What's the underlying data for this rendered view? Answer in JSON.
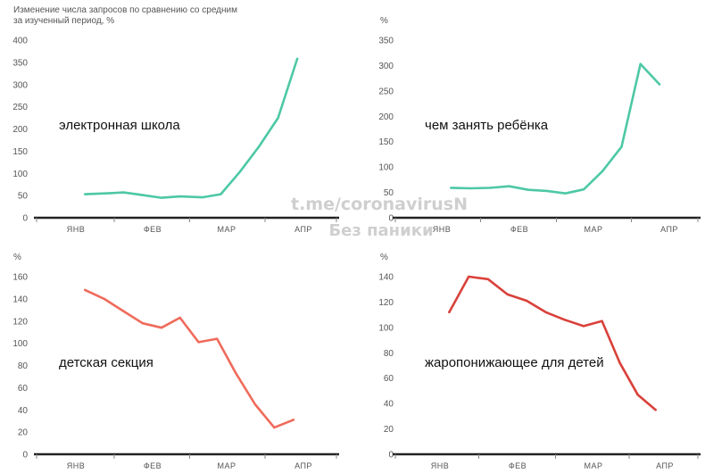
{
  "subtitle": "Изменение числа запросов по сравнению со средним за изученный период, %",
  "watermark": {
    "line1": "t.me/coronavirusN",
    "line2": "Без паники"
  },
  "colors": {
    "teal": "#4dc8a5",
    "coral": "#ef6b5b",
    "red": "#d9413a",
    "axis": "#222222",
    "tick_text": "#555555"
  },
  "chart_data": [
    {
      "type": "line",
      "title": "электронная школа",
      "unit_label": "",
      "months": [
        "ЯНВ",
        "ФЕВ",
        "МАР",
        "АПР"
      ],
      "ylim": [
        0,
        400
      ],
      "yticks": [
        0,
        50,
        100,
        150,
        200,
        250,
        300,
        350,
        400
      ],
      "x": [
        0.2,
        0.5,
        0.7,
        0.95,
        1.2,
        1.45,
        1.75,
        2.0,
        2.25,
        2.5,
        2.75,
        3.0
      ],
      "values": [
        53,
        55,
        57,
        51,
        45,
        48,
        46,
        53,
        103,
        160,
        225,
        358
      ],
      "color": "#4dc8a5"
    },
    {
      "type": "line",
      "title": "чем занять ребёнка",
      "unit_label": "%",
      "months": [
        "ЯНВ",
        "ФЕВ",
        "МАР",
        "АПР"
      ],
      "ylim": [
        0,
        350
      ],
      "yticks": [
        0,
        50,
        100,
        150,
        200,
        250,
        300,
        350
      ],
      "x": [
        0.2,
        0.45,
        0.7,
        0.95,
        1.2,
        1.45,
        1.7,
        1.95,
        2.2,
        2.45,
        2.7,
        2.95
      ],
      "values": [
        59,
        58,
        59,
        62,
        55,
        53,
        48,
        56,
        92,
        140,
        303,
        263
      ],
      "color": "#4dc8a5"
    },
    {
      "type": "line",
      "title": "детская секция",
      "unit_label": "%",
      "months": [
        "ЯНВ",
        "ФЕВ",
        "МАР",
        "АПР"
      ],
      "ylim": [
        0,
        160
      ],
      "yticks": [
        0,
        20,
        40,
        60,
        80,
        100,
        120,
        140,
        160
      ],
      "x": [
        0.2,
        0.45,
        0.7,
        0.95,
        1.2,
        1.45,
        1.7,
        1.95,
        2.2,
        2.45,
        2.7,
        2.95
      ],
      "values": [
        148,
        140,
        129,
        118,
        114,
        123,
        101,
        104,
        73,
        45,
        24,
        31
      ],
      "color": "#ef6b5b"
    },
    {
      "type": "line",
      "title": "жаропонижающее для детей",
      "unit_label": "%",
      "months": [
        "ЯНВ",
        "ФЕВ",
        "МАР",
        "АПР"
      ],
      "ylim": [
        0,
        140
      ],
      "yticks": [
        0,
        20,
        40,
        60,
        80,
        100,
        120,
        140
      ],
      "x": [
        0.2,
        0.45,
        0.7,
        0.95,
        1.2,
        1.45,
        1.7,
        1.95,
        2.2,
        2.45,
        2.7,
        2.95
      ],
      "values": [
        112,
        140,
        138,
        126,
        121,
        112,
        106,
        101,
        105,
        72,
        47,
        35
      ],
      "color": "#d9413a"
    }
  ]
}
